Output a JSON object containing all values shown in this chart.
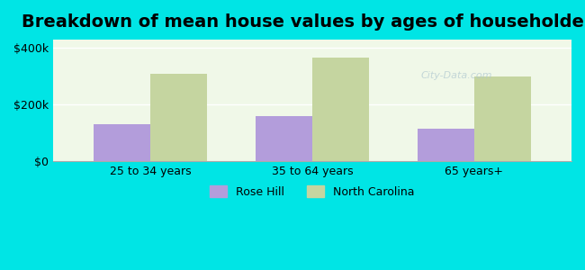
{
  "title": "Breakdown of mean house values by ages of householders",
  "categories": [
    "25 to 34 years",
    "35 to 64 years",
    "65 years+"
  ],
  "rose_hill_values": [
    130000,
    160000,
    115000
  ],
  "north_carolina_values": [
    310000,
    365000,
    300000
  ],
  "rose_hill_color": "#b39ddb",
  "north_carolina_color": "#c5d5a0",
  "background_color": "#00e5e5",
  "plot_bg_color": "#f0f8e8",
  "yticks": [
    0,
    200000,
    400000
  ],
  "ytick_labels": [
    "$0",
    "$200k",
    "$400k"
  ],
  "ylim": [
    0,
    430000
  ],
  "bar_width": 0.35,
  "title_fontsize": 14,
  "legend_labels": [
    "Rose Hill",
    "North Carolina"
  ]
}
